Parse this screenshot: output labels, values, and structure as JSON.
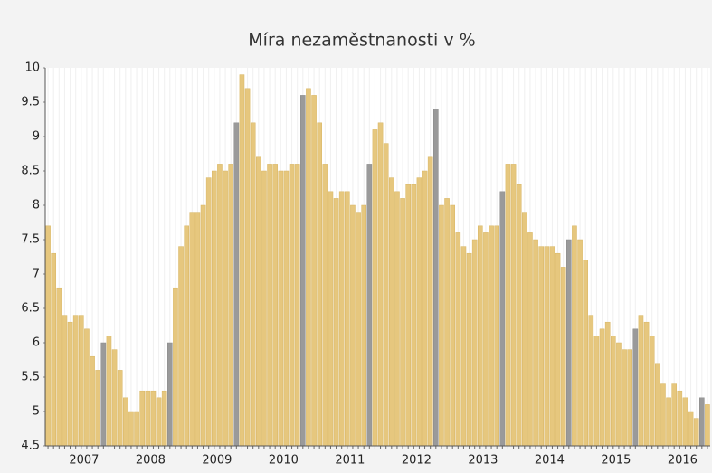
{
  "chart_data": {
    "type": "bar",
    "title": "Míra nezaměstnanosti v %",
    "categories": [
      null,
      null,
      null,
      null,
      null,
      null,
      "2007",
      null,
      null,
      null,
      null,
      null,
      null,
      null,
      null,
      null,
      null,
      null,
      "2008",
      null,
      null,
      null,
      null,
      null,
      null,
      null,
      null,
      null,
      null,
      null,
      "2009",
      null,
      null,
      null,
      null,
      null,
      null,
      null,
      null,
      null,
      null,
      null,
      "2010",
      null,
      null,
      null,
      null,
      null,
      null,
      null,
      null,
      null,
      null,
      null,
      "2011",
      null,
      null,
      null,
      null,
      null,
      null,
      null,
      null,
      null,
      null,
      null,
      "2012",
      null,
      null,
      null,
      null,
      null,
      null,
      null,
      null,
      null,
      null,
      null,
      "2013",
      null,
      null,
      null,
      null,
      null,
      null,
      null,
      null,
      null,
      null,
      null,
      "2014",
      null,
      null,
      null,
      null,
      null,
      null,
      null,
      null,
      null,
      null,
      null,
      "2015",
      null,
      null,
      null,
      null,
      null,
      null,
      null,
      null,
      null,
      null,
      null,
      "2016",
      null,
      null,
      null,
      null,
      null
    ],
    "values": [
      7.7,
      7.3,
      6.8,
      6.4,
      6.3,
      6.4,
      6.4,
      6.2,
      5.8,
      5.6,
      6.0,
      6.1,
      5.9,
      5.6,
      5.2,
      5.0,
      5.0,
      5.3,
      5.3,
      5.3,
      5.2,
      5.3,
      6.0,
      6.8,
      7.4,
      7.7,
      7.9,
      7.9,
      8.0,
      8.4,
      8.5,
      8.6,
      8.5,
      8.6,
      9.2,
      9.9,
      9.7,
      9.2,
      8.7,
      8.5,
      8.6,
      8.6,
      8.5,
      8.5,
      8.6,
      8.6,
      9.6,
      9.7,
      9.6,
      9.2,
      8.6,
      8.2,
      8.1,
      8.2,
      8.2,
      8.0,
      7.9,
      8.0,
      8.6,
      9.1,
      9.2,
      8.9,
      8.4,
      8.2,
      8.1,
      8.3,
      8.3,
      8.4,
      8.5,
      8.7,
      9.4,
      8.0,
      8.1,
      8.0,
      7.6,
      7.4,
      7.3,
      7.5,
      7.7,
      7.6,
      7.7,
      7.7,
      8.2,
      8.6,
      8.6,
      8.3,
      7.9,
      7.6,
      7.5,
      7.4,
      7.4,
      7.4,
      7.3,
      7.1,
      7.5,
      7.7,
      7.5,
      7.2,
      6.4,
      6.1,
      6.2,
      6.3,
      6.1,
      6.0,
      5.9,
      5.9,
      6.2,
      6.4,
      6.3,
      6.1,
      5.7,
      5.4,
      5.2,
      5.4,
      5.3,
      5.2,
      5.0,
      4.9,
      5.2,
      5.1
    ],
    "colors": [
      "#e6c77e",
      "#e6c77e",
      "#e6c77e",
      "#e6c77e",
      "#e6c77e",
      "#e6c77e",
      "#e6c77e",
      "#e6c77e",
      "#e6c77e",
      "#e6c77e",
      "#9a9a9a",
      "#e6c77e",
      "#e6c77e",
      "#e6c77e",
      "#e6c77e",
      "#e6c77e",
      "#e6c77e",
      "#e6c77e",
      "#e6c77e",
      "#e6c77e",
      "#e6c77e",
      "#e6c77e",
      "#9a9a9a",
      "#e6c77e",
      "#e6c77e",
      "#e6c77e",
      "#e6c77e",
      "#e6c77e",
      "#e6c77e",
      "#e6c77e",
      "#e6c77e",
      "#e6c77e",
      "#e6c77e",
      "#e6c77e",
      "#9a9a9a",
      "#e6c77e",
      "#e6c77e",
      "#e6c77e",
      "#e6c77e",
      "#e6c77e",
      "#e6c77e",
      "#e6c77e",
      "#e6c77e",
      "#e6c77e",
      "#e6c77e",
      "#e6c77e",
      "#9a9a9a",
      "#e6c77e",
      "#e6c77e",
      "#e6c77e",
      "#e6c77e",
      "#e6c77e",
      "#e6c77e",
      "#e6c77e",
      "#e6c77e",
      "#e6c77e",
      "#e6c77e",
      "#e6c77e",
      "#9a9a9a",
      "#e6c77e",
      "#e6c77e",
      "#e6c77e",
      "#e6c77e",
      "#e6c77e",
      "#e6c77e",
      "#e6c77e",
      "#e6c77e",
      "#e6c77e",
      "#e6c77e",
      "#e6c77e",
      "#9a9a9a",
      "#e6c77e",
      "#e6c77e",
      "#e6c77e",
      "#e6c77e",
      "#e6c77e",
      "#e6c77e",
      "#e6c77e",
      "#e6c77e",
      "#e6c77e",
      "#e6c77e",
      "#e6c77e",
      "#9a9a9a",
      "#e6c77e",
      "#e6c77e",
      "#e6c77e",
      "#e6c77e",
      "#e6c77e",
      "#e6c77e",
      "#e6c77e",
      "#e6c77e",
      "#e6c77e",
      "#e6c77e",
      "#e6c77e",
      "#9a9a9a",
      "#e6c77e",
      "#e6c77e",
      "#e6c77e",
      "#e6c77e",
      "#e6c77e",
      "#e6c77e",
      "#e6c77e",
      "#e6c77e",
      "#e6c77e",
      "#e6c77e",
      "#e6c77e",
      "#9a9a9a",
      "#e6c77e",
      "#e6c77e",
      "#e6c77e",
      "#e6c77e",
      "#e6c77e",
      "#e6c77e",
      "#e6c77e",
      "#e6c77e",
      "#e6c77e",
      "#e6c77e",
      "#e6c77e",
      "#9a9a9a",
      "#e6c77e"
    ],
    "ylim": [
      4.5,
      10
    ],
    "yticks": [
      4.5,
      5,
      5.5,
      6,
      6.5,
      7,
      7.5,
      8,
      8.5,
      9,
      9.5,
      10
    ],
    "grid": true
  }
}
